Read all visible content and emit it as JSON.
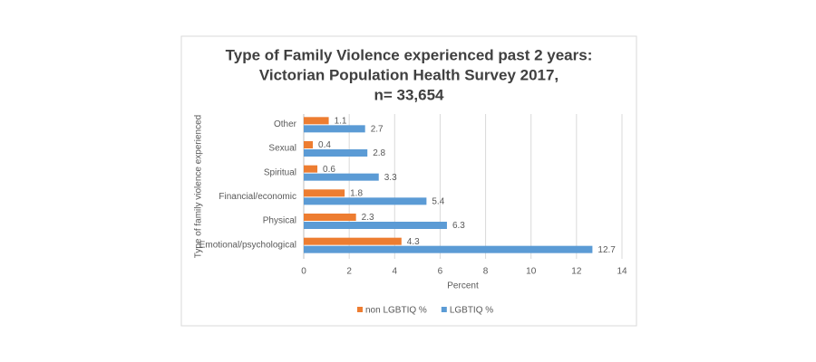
{
  "chart_data": {
    "type": "bar",
    "orientation": "horizontal",
    "title": [
      "Type of Family Violence experienced past 2 years:",
      "Victorian Population Health Survey 2017,",
      "n= 33,654"
    ],
    "x_label": "Percent",
    "y_label": "Type of family violence experienced",
    "categories": [
      "Other",
      "Sexual",
      "Spiritual",
      "Financial/economic",
      "Physical",
      "Emotional/psychological"
    ],
    "series": [
      {
        "name": "non LGBTIQ %",
        "color": "#ed7d31",
        "values": [
          1.1,
          0.4,
          0.6,
          1.8,
          2.3,
          4.3
        ]
      },
      {
        "name": "LGBTIQ %",
        "color": "#5b9bd5",
        "values": [
          2.7,
          2.8,
          3.3,
          5.4,
          6.3,
          12.7
        ]
      }
    ],
    "xlim": [
      0,
      14
    ],
    "xticks": [
      0,
      2,
      4,
      6,
      8,
      10,
      12,
      14
    ],
    "grid": true,
    "legend": "bottom"
  }
}
